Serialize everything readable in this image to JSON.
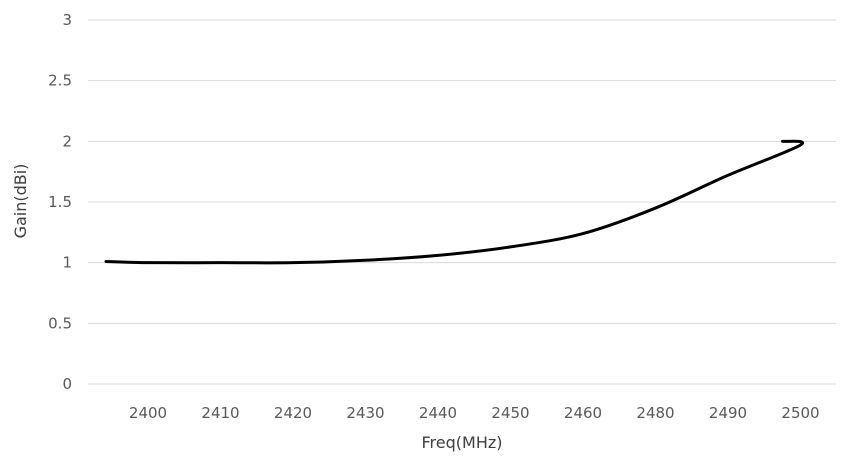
{
  "chart_data": {
    "type": "line",
    "title": "",
    "xlabel": "Freq(MHz)",
    "ylabel": "Gain(dBi)",
    "ylim": [
      0,
      3
    ],
    "yticks": [
      0,
      0.5,
      1,
      1.5,
      2,
      2.5,
      3
    ],
    "grid": true,
    "legend": "none",
    "categories": [
      "2400",
      "2410",
      "2420",
      "2430",
      "2440",
      "2450",
      "2460",
      "2480",
      "2490",
      "2500"
    ],
    "series": [
      {
        "color": "#000000",
        "values": [
          1.0,
          1.0,
          1.0,
          1.02,
          1.06,
          1.13,
          1.24,
          1.45,
          1.72,
          1.97
        ]
      }
    ],
    "line_start": {
      "value": 1.01
    },
    "line_end": {
      "value": 2.0
    }
  }
}
